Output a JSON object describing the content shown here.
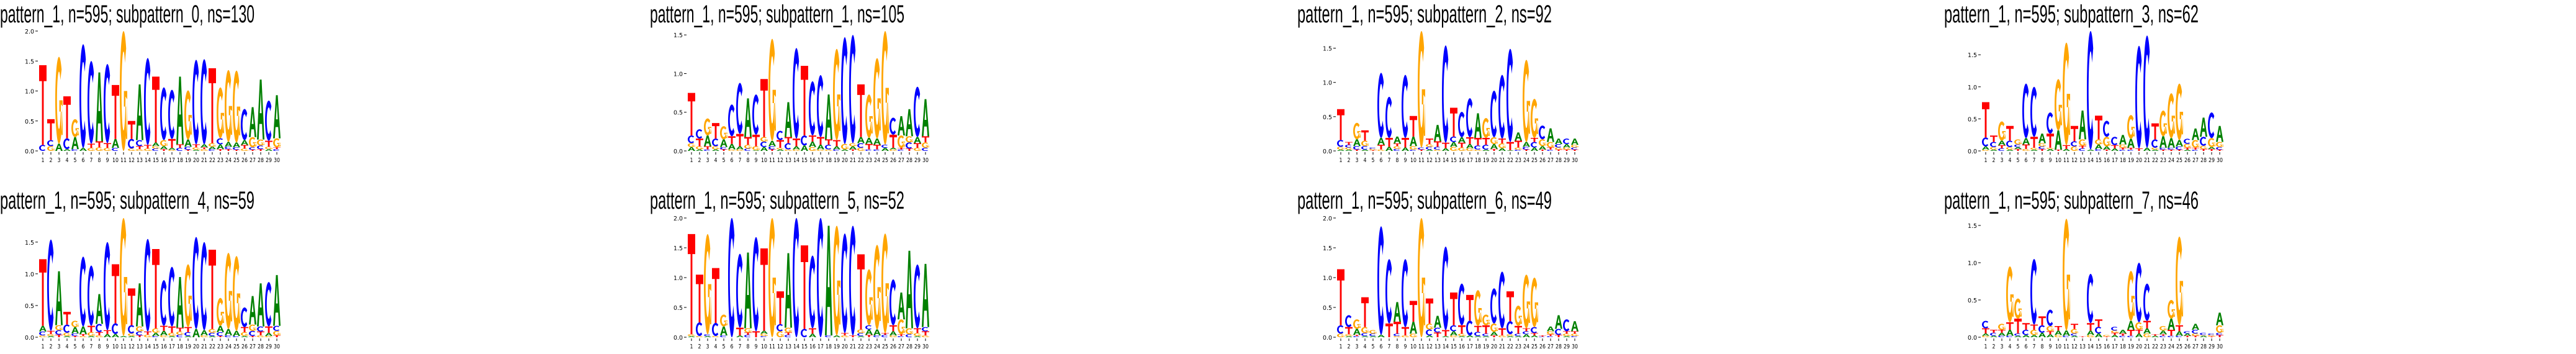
{
  "colors": {
    "A": "#008000",
    "C": "#0000ff",
    "G": "#ffa500",
    "T": "#ff0000"
  },
  "chart_data": [
    {
      "type": "sequence-logo",
      "title": "pattern_1, n=595; subpattern_0, ns=130",
      "ylabel": "",
      "ylim": [
        0,
        2.0
      ],
      "yticks": [
        "0.0",
        "0.5",
        "1.0",
        "1.5",
        "2.0"
      ],
      "xticks": [
        "1",
        "2",
        "3",
        "4",
        "5",
        "6",
        "7",
        "8",
        "9",
        "10",
        "11",
        "12",
        "13",
        "14",
        "15",
        "16",
        "17",
        "18",
        "19",
        "20",
        "21",
        "22",
        "23",
        "24",
        "25",
        "26",
        "27",
        "28",
        "29",
        "30"
      ],
      "positions": [
        "C.1 T1.33",
        "G.08 C.1 T.35",
        "A.12 G1.45",
        "A.03 C.18 T.7",
        "C.03 A.2 G.3",
        "A.05 C1.73",
        "G.05 T.07 C1.38",
        "G.06 T.1 A1.15",
        "G.05 T.08 C1.32",
        "C.05 A.15 T.9",
        "G2.0",
        "G.04 C.16 T.3",
        "G.03 T.05 C.1 A.93",
        "G.04 T.06 C1.45",
        "C.04 G.04 A.06 T1.1",
        "T.03 A.05 G.1 C.88",
        "G.02 A.03 T.15 C.82",
        "C.05 T.06 A1.13",
        "T.02 C.05 A.12 G.82",
        "A.02 G.04 T.05 C1.41",
        "G.03 T.03 A.05 C1.42",
        "C.03 A.04 G.06 T1.25",
        "T.03 A.08 C.1 G.85",
        "T.03 C.04 A.08 G1.2",
        "T.02 C.04 A.08 G1.2",
        "G.04 T.06 A.08 C.52",
        "T.02 C.04 G.17 A.5",
        "T.03 C.06 G.1 A1.0",
        "A.03 G.04 T.1 C.67",
        "C.03 T.03 G.15 A.72"
      ]
    },
    {
      "type": "sequence-logo",
      "title": "pattern_1, n=595; subpattern_1, ns=105",
      "ylabel": "",
      "ylim": [
        0,
        1.55
      ],
      "yticks": [
        "0.0",
        "0.5",
        "1.0",
        "1.5"
      ],
      "xticks": [
        "1",
        "2",
        "3",
        "4",
        "5",
        "6",
        "7",
        "8",
        "9",
        "10",
        "11",
        "12",
        "13",
        "14",
        "15",
        "16",
        "17",
        "18",
        "19",
        "20",
        "21",
        "22",
        "23",
        "24",
        "25",
        "26",
        "27",
        "28",
        "29",
        "30"
      ],
      "positions": [
        "A.05 G.05 C.1 T.55",
        "A.02 G.04 T.1 C.12",
        "C.02 T.04 A.14 G.22",
        "A.02 G.04 C.1 T.2",
        "T.02 C.03 A.1 G.17",
        "G.02 A.07 T.1 C.41",
        "G.02 A.04 T.16 C.66",
        "C.03 G.05 T.1 A.5",
        "A.01 G.05 T.15 C.52",
        "A.05 C.07 G.06 T.75",
        "T.02 C.04 A.07 G1.32",
        "A.02 G.02 T.1 C.12",
        "G.02 C.08 T.08 A.45",
        "G.02 A.04 T.1 C1.17",
        "A.07 C.13 T.9",
        "G.05 A.07 T.08 C.7",
        "G.02 A.06 T.1 C.8",
        "G.02 C.06 T.07 A.58",
        "C.02 A.04 T.08 G1.18",
        "A.02 G.07 C1.38",
        "T.02 A.04 G.04 C1.4",
        "G.04 C.06 A.08 T.68",
        "C.02 T.07 A.08 G.56",
        "C.02 T.06 A.08 G1.04",
        "A.04 C.04 G1.47",
        "G.02 A.02 T.17 C.22",
        "C.02 T.02 G.16 A.25",
        "T.03 C.08 G.08 A.35",
        "G.04 T.06 A.08 C.65",
        "C.04 G.07 T.08 A.48"
      ]
    },
    {
      "type": "sequence-logo",
      "title": "pattern_1, n=595; subpattern_2, ns=92",
      "ylabel": "",
      "ylim": [
        0,
        1.75
      ],
      "yticks": [
        "0.0",
        "0.5",
        "1.0",
        "1.5"
      ],
      "xticks": [
        "1",
        "2",
        "3",
        "4",
        "5",
        "6",
        "7",
        "8",
        "9",
        "10",
        "11",
        "12",
        "13",
        "14",
        "15",
        "16",
        "17",
        "18",
        "19",
        "20",
        "21",
        "22",
        "23",
        "24",
        "25",
        "26",
        "27",
        "28",
        "29",
        "30"
      ],
      "positions": [
        "A.02 G.04 C.1 T.45",
        "A.02 G.03 C.04 T.04",
        "T.02 C.05 A.1 G.24",
        "A.02 C.05 G.08 T.15",
        "T.01 G.02 C.02",
        "G.02 T.07 A.1 C.95",
        "A.06 T.13 C.6",
        "C.03 G.04 T.04 A.1",
        "A.05 T.14 C.92",
        "C.02 G.05 A.14 T.3",
        "T.02 C.03 G1.7",
        "A.02 C.04 G.04 T.08",
        "G.02 C.04 T.08 A.24",
        "A.04 T.08 C1.42",
        "G.06 A.07 C.08 T.42",
        "G.05 T.07 A.08 C.37",
        "G.04 A.06 T.1 C.57",
        "G.02 C.06 T.11 A.36",
        "A.02 C.07 T.1 G.29",
        "T.03 A.07 G.1 C.68",
        "A.04 G.07 T.07 C.93",
        "A.01 T.12 C1.36",
        "C.02 G.03 T.1 A.12",
        "T.02 C.04 A.07 G1.2",
        "A.05 C.08 T.06 G.57",
        "T.02 A.05 G.1 C.2",
        "C.02 T.03 G.08 A.2",
        "T.02 G.03 C.05 A.08",
        "T.02 G.03 A.05 C.08",
        "T.02 C.03 G.04 A.09"
      ]
    },
    {
      "type": "sequence-logo",
      "title": "pattern_1, n=595; subpattern_3, ns=62",
      "ylabel": "",
      "ylim": [
        0,
        1.87
      ],
      "yticks": [
        "0.0",
        "0.5",
        "1.0",
        "1.5"
      ],
      "xticks": [
        "1",
        "2",
        "3",
        "4",
        "5",
        "6",
        "7",
        "8",
        "9",
        "10",
        "11",
        "12",
        "13",
        "14",
        "15",
        "16",
        "17",
        "18",
        "19",
        "20",
        "21",
        "22",
        "23",
        "24",
        "25",
        "26",
        "27",
        "28",
        "29",
        "30"
      ],
      "positions": [
        "G.02 A.05 C.14 T.55",
        "A.02 G.04 C.08 T.1",
        "C.04 T.05 A.07 G.3",
        "A.02 G.04 C.1 T.23",
        "T.03 A.03 C.04 G.08",
        "G.03 T.07 A.1 C.85",
        "A.02 G.03 T.17 C.78",
        "T.03 C.04 G.05 A.15",
        "A.03 G.02 T.22 C.33",
        "T.02 A.3 G.8",
        "A.03 T.06 G1.6",
        "G.07 C.08 T.24",
        "C.04 T.04 G.1 A.45",
        "A.02 C1.85",
        "C.03 A.07 G.08 T.37",
        "T.02 A.05 G.15 C.25",
        "A.04 T.05 C.13",
        "C.02 T.03 G.05 A.15",
        "C.02 T.03 A.14 G.37",
        "T.04 C1.6",
        "A.05 C1.75",
        "A.02 G.03 C.13 T.25",
        "T.02 C.03 A.18 G.4",
        "T.02 C.03 A.15 G.7",
        "T.02 C.05 A.1 G.88",
        "A.02 T.03 G.06 C.08",
        "C.02 T.03 G.12 A.18",
        "T.03 G.05 C.14 A.3",
        "T.03 A.03 G.14 C.4",
        "T.02 C.04 G.08 A.25"
      ]
    },
    {
      "type": "sequence-logo",
      "title": "pattern_1, n=595; subpattern_4, ns=59",
      "ylabel": "",
      "ylim": [
        0,
        1.88
      ],
      "yticks": [
        "0.0",
        "0.5",
        "1.0",
        "1.5"
      ],
      "xticks": [
        "1",
        "2",
        "3",
        "4",
        "5",
        "6",
        "7",
        "8",
        "9",
        "10",
        "11",
        "12",
        "13",
        "14",
        "15",
        "16",
        "17",
        "18",
        "19",
        "20",
        "21",
        "22",
        "23",
        "24",
        "25",
        "26",
        "27",
        "28",
        "29",
        "30"
      ],
      "positions": [
        "G.03 C.06 A.09 T1.05",
        "A.02 G.03 T.05 C1.44",
        "T.04 C.07 G.08 A.85",
        "A.02 G.05 C.13 T.2",
        "T.02 C.04 A.1 G.1",
        "G.02 T.03 A.12 C1.1",
        "A.02 G.06 T.1 C.95",
        "G.03 T.05 C.13 A.47",
        "A.05 T.06 C1.39",
        "A.05 C.17 T.93",
        "A.02 G1.86",
        "A.02 G.04 C.13 T.58",
        "T.03 C.06 G.08 A.68",
        "G.04 T.05 C1.46",
        "C.02 A.05 G.07 T1.25",
        "G.03 A.07 T.08 C.72",
        "A.02 G.05 T.1 C.94",
        "C.04 G.05 T.06 A.8",
        "A.02 C.06 T.08 G.99",
        "A.13 C1.45",
        "G.03 A.08 C1.39",
        "A.02 C.05 G.06 T1.25",
        "T.02 C.06 A.1 G.44",
        "C.03 A.1 G1.2",
        "C.02 A.08 G1.18",
        "A.02 G.06 T.08 C.31",
        "T.02 C.08 G.1 A.45",
        "G.03 T.06 C.08 A.68",
        "G.02 A.05 T.1 C.7",
        "T.03 G.07 C.08 A.8"
      ]
    },
    {
      "type": "sequence-logo",
      "title": "pattern_1, n=595; subpattern_5, ns=52",
      "ylabel": "",
      "ylim": [
        0,
        2.0
      ],
      "yticks": [
        "0.0",
        "0.5",
        "1.0",
        "1.5",
        "2.0"
      ],
      "xticks": [
        "1",
        "2",
        "3",
        "4",
        "5",
        "6",
        "7",
        "8",
        "9",
        "10",
        "11",
        "12",
        "13",
        "14",
        "15",
        "16",
        "17",
        "18",
        "19",
        "20",
        "21",
        "22",
        "23",
        "24",
        "25",
        "26",
        "27",
        "28",
        "29",
        "30"
      ],
      "positions": [
        "A.02 G.03 T1.68",
        "G.02 C.23 T.8",
        "A.02 C.03 G1.68",
        "G.02 C.22 T.92",
        "C.03 A.15 G.2",
        "C2.0",
        "A.03 T.13 C1.24",
        "C.04 T.04 G.07 A1.27",
        "T.1 C1.58",
        "C.02 G.04 A.05 T1.38",
        "G2.0",
        "G.1 C.12 T.55",
        "C.04 T.04 G.08 A1.25",
        "C2.0",
        "C.14 T1.4",
        "A.06 T.09 C1.22",
        "C2.0",
        "C.03 A1.84",
        "A.03 G1.84",
        "G.03 T.04 C1.67",
        "T.03 C1.84",
        "A.02 C.05 G.06 T1.26",
        "T.04 A.09 C.07 G.94",
        "C.03 A.1 G1.42",
        "C.04 T.03 G1.67",
        "G.03 A.07 T.1 C.77",
        "C.02 T.03 G.25 A.45",
        "C.05 G.1 A1.3",
        "A.02 G.05 T.08 C1.07",
        "G.03 T.07 C.07 A1.06"
      ]
    },
    {
      "type": "sequence-logo",
      "title": "pattern_1, n=595; subpattern_6, ns=49",
      "ylabel": "",
      "ylim": [
        0,
        2.0
      ],
      "yticks": [
        "0.0",
        "0.5",
        "1.0",
        "1.5",
        "2.0"
      ],
      "xticks": [
        "1",
        "2",
        "3",
        "4",
        "5",
        "6",
        "7",
        "8",
        "9",
        "10",
        "11",
        "12",
        "13",
        "14",
        "15",
        "16",
        "17",
        "18",
        "19",
        "20",
        "21",
        "22",
        "23",
        "24",
        "25",
        "26",
        "27",
        "28",
        "29",
        "30"
      ],
      "positions": [
        "G.06 C.14 T.94",
        "A.02 G.03 T.12 C.2",
        "C.02 T.02 A.1 G.16",
        "A.02 C.05 G.1 T.5",
        "A.02 C.04 G.06",
        "A.04 C1.82",
        "T.23 C1.08",
        "G.02 C.04 T.2 A.33",
        "G.03 T.14 C1.14",
        "G.06 A.2 T.35",
        "G2.0",
        "A.03 C.1 G.1 T.42",
        "T.08 C.08 A.2",
        "A.02 T.1 C1.4",
        "G.03 A.07 C.1 T.55",
        "A.02 G.04 T.14 C.7",
        "A.03 C.25 T.43",
        "A.02 C.07 T.1 G.6",
        "A.02 C.04 T.14 G.18",
        "T.03 A.06 G.14 C.59",
        "G.03 T.12 C.95",
        "A.02 G.03 C.22 T.5",
        "A.02 C.04 T.13 G.34",
        "A.05 C.05 T.05 G.9",
        "A.03 T.04 C.1 G.83",
        "C.01 T.02",
        "C.02 T.03 G.05 A.08",
        "T.04 C.1 A.23",
        "A.02 G.04 T.04 C.2",
        "C.02 G.04 T.04 A.17"
      ]
    },
    {
      "type": "sequence-logo",
      "title": "pattern_1, n=595; subpattern_7, ns=46",
      "ylabel": "",
      "ylim": [
        0,
        1.6
      ],
      "yticks": [
        "0.0",
        "0.5",
        "1.0",
        "1.5"
      ],
      "xticks": [
        "1",
        "2",
        "3",
        "4",
        "5",
        "6",
        "7",
        "8",
        "9",
        "10",
        "11",
        "12",
        "13",
        "14",
        "15",
        "16",
        "17",
        "18",
        "19",
        "20",
        "21",
        "22",
        "23",
        "24",
        "25",
        "26",
        "27",
        "28",
        "29",
        "30"
      ],
      "positions": [
        "G.02 A.03 T.07 C.1",
        "A.02 C.04 T.04",
        "C.02 A.04 T.04 G.08",
        "C.02 A.08 T.1 G.75",
        "A.02 C.03 T.2 G.27",
        "A.03 C.07 T.09",
        "A.03 G.07 T.07 C.88",
        "A.06 C.1 T.12",
        "A.04 T.04 G.07 C.22",
        "G.03 A.06 T.06",
        "C.02 A.07 G1.5",
        "A.02 C.03 G.06 T.07",
        "T.01",
        "G.03 A.06 T.1 C.66",
        "A.05 C.09 T.1",
        "T.01 G.02",
        "A.03 T.03 G.03 C.05",
        "C.02 T.03 A.05",
        "C.02 T.08 A.12 G.67",
        "A.05 T.05 G.1 C.8",
        "G.05 A.07 T.1 C.5",
        "A.02 T.02",
        "C.02 T.02 A.05 G.06",
        "C.02 T.08 A.15 G.25",
        "C.02 A.06 T.08 G1.19",
        "T.02 A.03 C.03",
        "T.02 G.03 C.05 A.08",
        "A.02 G.01 C.03",
        "T.01 G.02 C.02",
        "T.03 C.03 G.1 A.17"
      ]
    }
  ]
}
